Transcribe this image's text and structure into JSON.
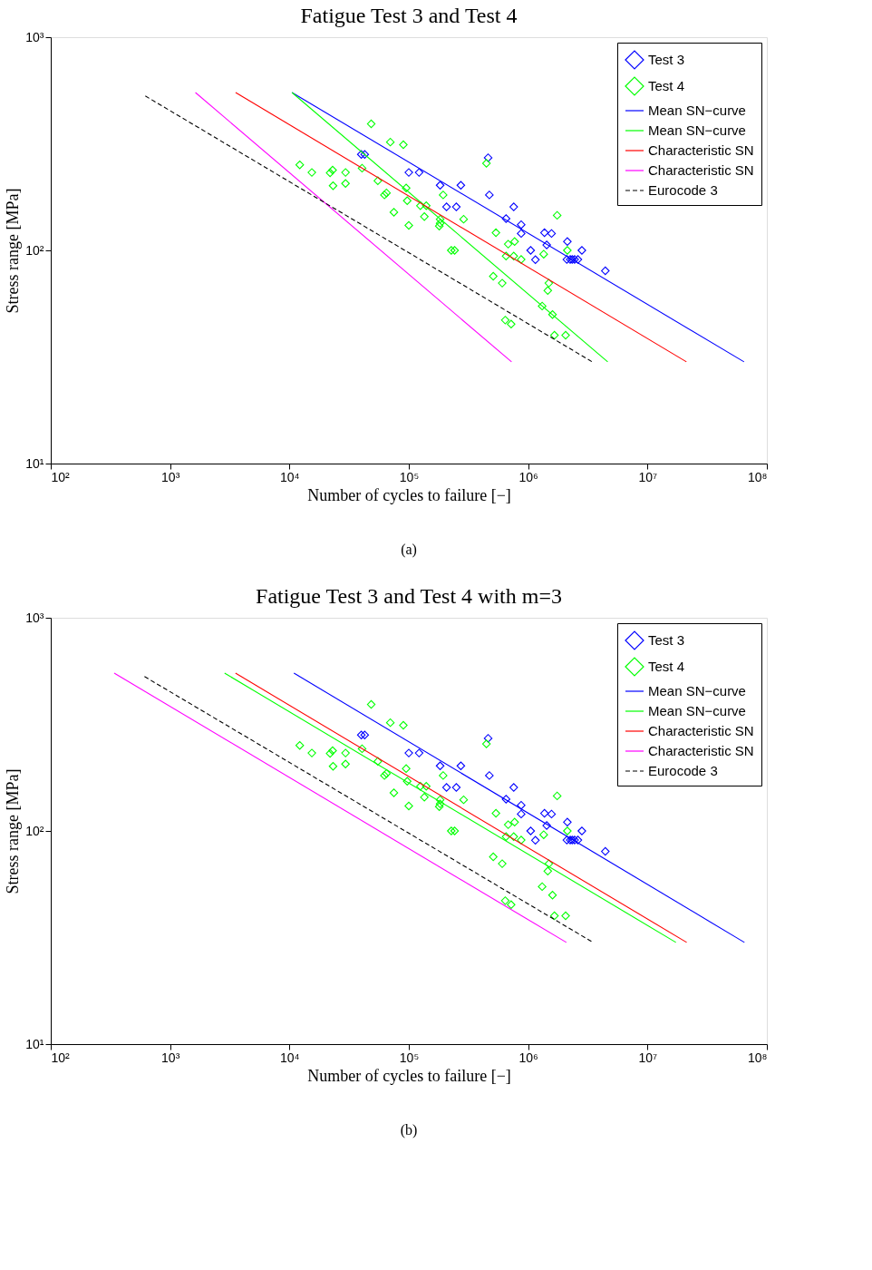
{
  "chart_data": [
    {
      "type": "scatter",
      "title": "Fatigue Test 3 and Test 4",
      "xlabel": "Number of cycles to failure [−]",
      "ylabel": "Stress range [MPa]",
      "log": "xy",
      "xlim": [
        100,
        100000000
      ],
      "ylim": [
        10,
        1000
      ],
      "xticks": [
        {
          "value": 100,
          "label": "10²"
        },
        {
          "value": 1000,
          "label": "10³"
        },
        {
          "value": 10000,
          "label": "10⁴"
        },
        {
          "value": 100000,
          "label": "10⁵"
        },
        {
          "value": 1000000,
          "label": "10⁶"
        },
        {
          "value": 10000000,
          "label": "10⁷"
        },
        {
          "value": 100000000,
          "label": "10⁸"
        }
      ],
      "yticks": [
        {
          "value": 10,
          "label": "10¹"
        },
        {
          "value": 100,
          "label": "10²"
        },
        {
          "value": 1000,
          "label": "10³"
        }
      ],
      "legend": "top right",
      "annotations": [
        "(a)"
      ],
      "series": [
        {
          "name": "Test 3",
          "marker": "diamond",
          "color": "#0000ff",
          "x": [
            40000,
            42700,
            100000,
            122000,
            183000,
            273000,
            207000,
            250000,
            462000,
            473000,
            653000,
            757000,
            874000,
            874000,
            1370000,
            1570000,
            1050000,
            1430000,
            2130000,
            2820000,
            1150000,
            2110000,
            2250000,
            2340000,
            2450000,
            2610000,
            4430000
          ],
          "values": [
            282,
            282,
            232,
            232,
            202,
            202,
            160,
            160,
            272,
            182,
            141,
            160,
            132,
            120,
            121,
            120,
            100,
            106,
            110,
            100,
            90.4,
            90.6,
            90.6,
            90.6,
            90.6,
            90.6,
            80.2
          ]
        },
        {
          "name": "Test 4",
          "marker": "diamond",
          "color": "#00ff00",
          "x": [
            12200,
            15400,
            21900,
            23000,
            29500,
            23200,
            29500,
            40600,
            48400,
            70000,
            90000,
            55000,
            62500,
            65000,
            95000,
            97000,
            75000,
            125000,
            140000,
            135000,
            100000,
            183000,
            183000,
            180000,
            194000,
            227000,
            242000,
            447000,
            288000,
            1750000,
            537000,
            680000,
            770000,
            2130000,
            1350000,
            653000,
            757000,
            874000,
            510000,
            606000,
            1490000,
            1460000,
            1310000,
            1600000,
            643000,
            720000,
            1660000,
            2060000
          ],
          "values": [
            252,
            232,
            231,
            238,
            232,
            201,
            206,
            243,
            392,
            322,
            313,
            212,
            182,
            186,
            196,
            171,
            151,
            162,
            162,
            144,
            131,
            140,
            134,
            130,
            182,
            100,
            100,
            256,
            140,
            146,
            121,
            107,
            110,
            100,
            96,
            94,
            94,
            90.6,
            75.6,
            70.2,
            70.2,
            64.8,
            54.8,
            50,
            47.1,
            45.1,
            40,
            40
          ]
        },
        {
          "name": "Mean SN−curve",
          "type": "line",
          "line_style": "solid",
          "color": "#0000ff",
          "x": [
            10500,
            64400000
          ],
          "values": [
            550,
            30
          ]
        },
        {
          "name": "Mean SN−curve",
          "type": "line",
          "line_style": "solid",
          "color": "#00ff00",
          "x": [
            10500,
            4640000
          ],
          "values": [
            550,
            30
          ]
        },
        {
          "name": "Characteristic SN",
          "type": "line",
          "line_style": "solid",
          "color": "#ff0000",
          "x": [
            3540,
            21200000
          ],
          "values": [
            550,
            30
          ]
        },
        {
          "name": "Characteristic SN",
          "type": "line",
          "line_style": "solid",
          "color": "#ff00ff",
          "x": [
            1630,
            726000
          ],
          "values": [
            550,
            30
          ]
        },
        {
          "name": "Eurocode 3",
          "type": "line",
          "line_style": "dashed",
          "color": "#000000",
          "x": [
            620,
            3440000
          ],
          "values": [
            530,
            30
          ]
        }
      ]
    },
    {
      "type": "scatter",
      "title": "Fatigue Test 3 and Test 4 with m=3",
      "xlabel": "Number of cycles to failure [−]",
      "ylabel": "Stress range [MPa]",
      "log": "xy",
      "xlim": [
        100,
        100000000
      ],
      "ylim": [
        10,
        1000
      ],
      "xticks": [
        {
          "value": 100,
          "label": "10²"
        },
        {
          "value": 1000,
          "label": "10³"
        },
        {
          "value": 10000,
          "label": "10⁴"
        },
        {
          "value": 100000,
          "label": "10⁵"
        },
        {
          "value": 1000000,
          "label": "10⁶"
        },
        {
          "value": 10000000,
          "label": "10⁷"
        },
        {
          "value": 100000000,
          "label": "10⁸"
        }
      ],
      "yticks": [
        {
          "value": 10,
          "label": "10¹"
        },
        {
          "value": 100,
          "label": "10²"
        },
        {
          "value": 1000,
          "label": "10³"
        }
      ],
      "legend": "top right",
      "annotations": [
        "(b)"
      ],
      "series": [
        {
          "name": "Test 3",
          "marker": "diamond",
          "color": "#0000ff",
          "x": [
            40000,
            42700,
            100000,
            122000,
            183000,
            273000,
            207000,
            250000,
            462000,
            473000,
            653000,
            757000,
            874000,
            874000,
            1370000,
            1570000,
            1050000,
            1430000,
            2130000,
            2820000,
            1150000,
            2110000,
            2250000,
            2340000,
            2450000,
            2610000,
            4430000
          ],
          "values": [
            282,
            282,
            232,
            232,
            202,
            202,
            160,
            160,
            272,
            182,
            141,
            160,
            132,
            120,
            121,
            120,
            100,
            106,
            110,
            100,
            90.4,
            90.6,
            90.6,
            90.6,
            90.6,
            90.6,
            80.2
          ]
        },
        {
          "name": "Test 4",
          "marker": "diamond",
          "color": "#00ff00",
          "x": [
            12200,
            15400,
            21900,
            23000,
            29500,
            23200,
            29500,
            40600,
            48400,
            70000,
            90000,
            55000,
            62500,
            65000,
            95000,
            97000,
            75000,
            125000,
            140000,
            135000,
            100000,
            183000,
            183000,
            180000,
            194000,
            227000,
            242000,
            447000,
            288000,
            1750000,
            537000,
            680000,
            770000,
            2130000,
            1350000,
            653000,
            757000,
            874000,
            510000,
            606000,
            1490000,
            1460000,
            1310000,
            1600000,
            643000,
            720000,
            1660000,
            2060000
          ],
          "values": [
            252,
            232,
            231,
            238,
            232,
            201,
            206,
            243,
            392,
            322,
            313,
            212,
            182,
            186,
            196,
            171,
            151,
            162,
            162,
            144,
            131,
            140,
            134,
            130,
            182,
            100,
            100,
            256,
            140,
            146,
            121,
            107,
            110,
            100,
            96,
            94,
            94,
            90.6,
            75.6,
            70.2,
            70.2,
            64.8,
            54.8,
            50,
            47.1,
            45.1,
            40,
            40
          ]
        },
        {
          "name": "Mean SN−curve",
          "type": "line",
          "line_style": "solid",
          "color": "#0000ff",
          "x": [
            10900,
            64900000
          ],
          "values": [
            550,
            30
          ]
        },
        {
          "name": "Mean SN−curve",
          "type": "line",
          "line_style": "solid",
          "color": "#00ff00",
          "x": [
            2860,
            17300000
          ],
          "values": [
            550,
            30
          ]
        },
        {
          "name": "Characteristic SN",
          "type": "line",
          "line_style": "solid",
          "color": "#ff0000",
          "x": [
            3530,
            21300000
          ],
          "values": [
            550,
            30
          ]
        },
        {
          "name": "Characteristic SN",
          "type": "line",
          "line_style": "solid",
          "color": "#ff00ff",
          "x": [
            340,
            2090000
          ],
          "values": [
            550,
            30
          ]
        },
        {
          "name": "Eurocode 3",
          "type": "line",
          "line_style": "dashed",
          "color": "#000000",
          "x": [
            610,
            3500000
          ],
          "values": [
            530,
            30
          ]
        }
      ]
    }
  ]
}
